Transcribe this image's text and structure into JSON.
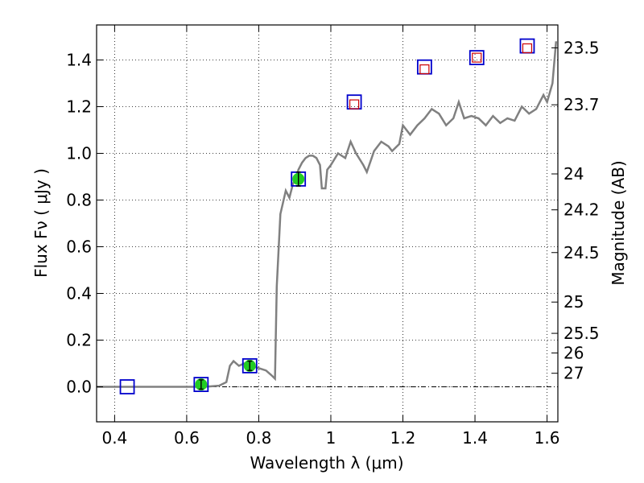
{
  "chart_data": {
    "type": "scatter",
    "title": "",
    "xlabel": "Wavelength  λ (μm)",
    "ylabel": "Flux  Fν  ( μJy )",
    "ylabel_right": "Magnitude (AB)",
    "xlim": [
      0.35,
      1.63
    ],
    "ylim": [
      -0.15,
      1.55
    ],
    "grid": true,
    "xticks": [
      {
        "value": 0.4,
        "label": "0.4"
      },
      {
        "value": 0.6,
        "label": "0.6"
      },
      {
        "value": 0.8,
        "label": "0.8"
      },
      {
        "value": 1.0,
        "label": "1"
      },
      {
        "value": 1.2,
        "label": "1.2"
      },
      {
        "value": 1.4,
        "label": "1.4"
      },
      {
        "value": 1.6,
        "label": "1.6"
      }
    ],
    "yticks": [
      {
        "value": 0.0,
        "label": "0.0"
      },
      {
        "value": 0.2,
        "label": "0.2"
      },
      {
        "value": 0.4,
        "label": "0.4"
      },
      {
        "value": 0.6,
        "label": "0.6"
      },
      {
        "value": 0.8,
        "label": "0.8"
      },
      {
        "value": 1.0,
        "label": "1.0"
      },
      {
        "value": 1.2,
        "label": "1.2"
      },
      {
        "value": 1.4,
        "label": "1.4"
      }
    ],
    "right_ticks": [
      {
        "flux": 1.452,
        "label": "23.5"
      },
      {
        "flux": 1.208,
        "label": "23.7"
      },
      {
        "flux": 0.912,
        "label": "24"
      },
      {
        "flux": 0.758,
        "label": "24.2"
      },
      {
        "flux": 0.575,
        "label": "24.5"
      },
      {
        "flux": 0.363,
        "label": "25"
      },
      {
        "flux": 0.229,
        "label": "25.5"
      },
      {
        "flux": 0.145,
        "label": "26"
      },
      {
        "flux": 0.058,
        "label": "27"
      }
    ],
    "colors": {
      "spectrum": "#808080",
      "measured_fill": "#22cc22",
      "box_edge": "#0000cc",
      "model_box": "#cc0000",
      "zero_line": "#000000"
    },
    "series": [
      {
        "role": "model_spectrum",
        "style": "line",
        "points": [
          [
            0.35,
            0.0
          ],
          [
            0.65,
            0.0
          ],
          [
            0.69,
            0.005
          ],
          [
            0.71,
            0.02
          ],
          [
            0.72,
            0.09
          ],
          [
            0.73,
            0.11
          ],
          [
            0.745,
            0.09
          ],
          [
            0.76,
            0.1
          ],
          [
            0.78,
            0.09
          ],
          [
            0.8,
            0.08
          ],
          [
            0.82,
            0.07
          ],
          [
            0.835,
            0.05
          ],
          [
            0.845,
            0.035
          ],
          [
            0.85,
            0.43
          ],
          [
            0.86,
            0.74
          ],
          [
            0.875,
            0.84
          ],
          [
            0.885,
            0.81
          ],
          [
            0.895,
            0.87
          ],
          [
            0.905,
            0.9
          ],
          [
            0.91,
            0.93
          ],
          [
            0.92,
            0.96
          ],
          [
            0.93,
            0.98
          ],
          [
            0.94,
            0.99
          ],
          [
            0.95,
            0.99
          ],
          [
            0.96,
            0.98
          ],
          [
            0.97,
            0.95
          ],
          [
            0.975,
            0.85
          ],
          [
            0.985,
            0.85
          ],
          [
            0.99,
            0.93
          ],
          [
            1.0,
            0.95
          ],
          [
            1.02,
            1.0
          ],
          [
            1.04,
            0.98
          ],
          [
            1.055,
            1.05
          ],
          [
            1.07,
            1.0
          ],
          [
            1.09,
            0.95
          ],
          [
            1.1,
            0.92
          ],
          [
            1.12,
            1.01
          ],
          [
            1.14,
            1.05
          ],
          [
            1.16,
            1.03
          ],
          [
            1.17,
            1.01
          ],
          [
            1.19,
            1.04
          ],
          [
            1.2,
            1.12
          ],
          [
            1.22,
            1.08
          ],
          [
            1.24,
            1.12
          ],
          [
            1.26,
            1.15
          ],
          [
            1.28,
            1.19
          ],
          [
            1.3,
            1.17
          ],
          [
            1.32,
            1.12
          ],
          [
            1.34,
            1.15
          ],
          [
            1.355,
            1.22
          ],
          [
            1.37,
            1.15
          ],
          [
            1.39,
            1.16
          ],
          [
            1.41,
            1.15
          ],
          [
            1.43,
            1.12
          ],
          [
            1.45,
            1.16
          ],
          [
            1.47,
            1.13
          ],
          [
            1.49,
            1.15
          ],
          [
            1.51,
            1.14
          ],
          [
            1.53,
            1.2
          ],
          [
            1.55,
            1.17
          ],
          [
            1.57,
            1.19
          ],
          [
            1.59,
            1.25
          ],
          [
            1.6,
            1.22
          ],
          [
            1.615,
            1.3
          ],
          [
            1.625,
            1.48
          ]
        ]
      },
      {
        "role": "measured_photometry",
        "style": "filled-circle-with-errorbar",
        "points": [
          {
            "x": 0.64,
            "y": 0.01,
            "err": 0.02
          },
          {
            "x": 0.775,
            "y": 0.09,
            "err": 0.02
          },
          {
            "x": 0.91,
            "y": 0.89,
            "err": 0.03
          }
        ]
      },
      {
        "role": "filter_boxes_blue",
        "style": "open-square",
        "points": [
          {
            "x": 0.435,
            "y": 0.0
          },
          {
            "x": 0.64,
            "y": 0.01
          },
          {
            "x": 0.775,
            "y": 0.09
          },
          {
            "x": 0.91,
            "y": 0.89
          },
          {
            "x": 1.065,
            "y": 1.22
          },
          {
            "x": 1.26,
            "y": 1.37
          },
          {
            "x": 1.405,
            "y": 1.41
          },
          {
            "x": 1.545,
            "y": 1.46
          }
        ]
      },
      {
        "role": "model_boxes_red",
        "style": "open-square-small",
        "points": [
          {
            "x": 1.065,
            "y": 1.21
          },
          {
            "x": 1.26,
            "y": 1.36
          },
          {
            "x": 1.405,
            "y": 1.41
          },
          {
            "x": 1.545,
            "y": 1.45
          }
        ]
      }
    ]
  }
}
